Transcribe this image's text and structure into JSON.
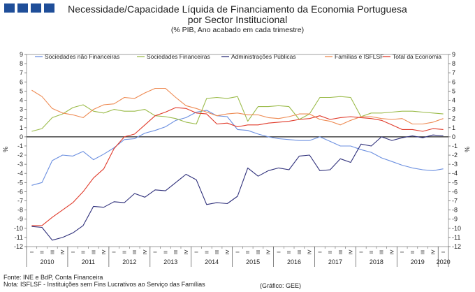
{
  "header": {
    "title_line1": "Necessidade/Capacidade Líquida de Financiamento da Economia Portuguesa",
    "title_line2": "por Sector Institucional",
    "subtitle": "(% PIB, Ano acabado em cada trimestre)"
  },
  "footer": {
    "source": "Fonte: INE e BdP, Conta Financeira",
    "note": "Nota: ISFLSF - Instituições sem Fins Lucrativos ao Serviço das Famílias",
    "credit": "(Gráfico: GEE)"
  },
  "colors": {
    "logo": "#1f4e99",
    "nfc": "#6b8fe0",
    "fin": "#9bbb4a",
    "gov": "#2e2f7a",
    "hh": "#ee8a52",
    "total": "#e03a2a"
  },
  "chart_data": {
    "type": "line",
    "ylabel_left": "%",
    "ylabel_right": "%",
    "ylim": [
      -12,
      9
    ],
    "yticks": [
      9,
      8,
      7,
      6,
      5,
      4,
      3,
      2,
      1,
      0,
      -1,
      -2,
      -3,
      -4,
      -5,
      -6,
      -7,
      -8,
      -9,
      -10,
      -11,
      -12
    ],
    "grid": false,
    "legend_position": "top",
    "quarter_labels": [
      "I",
      "II",
      "III",
      "IV"
    ],
    "years": [
      "2010",
      "2011",
      "2012",
      "2013",
      "2014",
      "2015",
      "2016",
      "2017",
      "2018",
      "2019",
      "2020"
    ],
    "x": [
      "2010 I",
      "2010 II",
      "2010 III",
      "2010 IV",
      "2011 I",
      "2011 II",
      "2011 III",
      "2011 IV",
      "2012 I",
      "2012 II",
      "2012 III",
      "2012 IV",
      "2013 I",
      "2013 II",
      "2013 III",
      "2013 IV",
      "2014 I",
      "2014 II",
      "2014 III",
      "2014 IV",
      "2015 I",
      "2015 II",
      "2015 III",
      "2015 IV",
      "2016 I",
      "2016 II",
      "2016 III",
      "2016 IV",
      "2017 I",
      "2017 II",
      "2017 III",
      "2017 IV",
      "2018 I",
      "2018 II",
      "2018 III",
      "2018 IV",
      "2019 I",
      "2019 II",
      "2019 III",
      "2019 IV",
      "2020 I"
    ],
    "series": [
      {
        "name": "Sociedades não Financeiras",
        "color": "#6b8fe0",
        "values": [
          -5.3,
          -5.0,
          -2.6,
          -2.0,
          -2.1,
          -1.6,
          -2.5,
          -1.9,
          -1.2,
          -0.3,
          -0.2,
          0.4,
          0.7,
          1.1,
          1.8,
          2.1,
          2.7,
          2.9,
          2.3,
          2.2,
          0.8,
          0.7,
          0.3,
          0.0,
          -0.2,
          -0.3,
          -0.4,
          -0.4,
          0.0,
          -0.5,
          -1.0,
          -1.0,
          -1.4,
          -1.7,
          -2.3,
          -2.7,
          -3.1,
          -3.4,
          -3.6,
          -3.7,
          -3.5
        ]
      },
      {
        "name": "Sociedades Financeiras",
        "color": "#9bbb4a",
        "values": [
          0.6,
          0.9,
          2.1,
          2.5,
          3.2,
          3.5,
          2.8,
          2.6,
          3.0,
          2.8,
          2.8,
          3.0,
          2.3,
          2.2,
          2.0,
          1.6,
          1.4,
          4.2,
          4.3,
          4.2,
          4.4,
          1.7,
          3.3,
          3.3,
          3.4,
          3.3,
          1.9,
          2.5,
          4.3,
          4.3,
          4.4,
          4.3,
          2.2,
          2.6,
          2.6,
          2.7,
          2.8,
          2.8,
          2.7,
          2.6,
          2.5
        ]
      },
      {
        "name": "Administrações Públicas",
        "color": "#2e2f7a",
        "values": [
          -9.8,
          -9.9,
          -11.3,
          -11.0,
          -10.5,
          -9.7,
          -7.6,
          -7.7,
          -7.1,
          -7.2,
          -6.2,
          -6.6,
          -5.8,
          -5.9,
          -5.0,
          -4.1,
          -4.7,
          -7.4,
          -7.2,
          -7.3,
          -6.5,
          -3.4,
          -4.3,
          -3.7,
          -3.4,
          -3.6,
          -2.1,
          -2.0,
          -3.7,
          -3.6,
          -2.4,
          -2.8,
          -0.8,
          -1.0,
          0.0,
          -0.4,
          -0.1,
          0.1,
          -0.1,
          0.2,
          0.1
        ]
      },
      {
        "name": "Famílias e ISFLSF",
        "color": "#ee8a52",
        "values": [
          5.1,
          4.4,
          3.1,
          2.6,
          2.4,
          2.1,
          3.0,
          3.5,
          3.6,
          4.3,
          4.2,
          4.8,
          5.3,
          5.3,
          4.3,
          3.4,
          3.1,
          2.7,
          2.3,
          2.5,
          2.6,
          2.4,
          2.4,
          2.1,
          2.0,
          2.2,
          2.5,
          2.5,
          1.9,
          1.7,
          1.3,
          1.8,
          2.2,
          2.2,
          2.0,
          1.9,
          2.0,
          1.4,
          1.4,
          1.6,
          2.0
        ]
      },
      {
        "name": "Total da Economia",
        "color": "#e03a2a",
        "values": [
          -9.7,
          -9.7,
          -8.8,
          -8.0,
          -7.2,
          -6.0,
          -4.5,
          -3.5,
          -1.3,
          0.0,
          0.3,
          1.3,
          2.3,
          2.7,
          3.2,
          3.1,
          2.6,
          2.5,
          1.4,
          1.5,
          1.1,
          1.3,
          1.3,
          1.5,
          1.6,
          1.7,
          1.9,
          2.0,
          2.3,
          1.9,
          2.1,
          2.2,
          2.1,
          2.0,
          1.8,
          1.3,
          0.8,
          0.8,
          0.6,
          0.9,
          0.8
        ]
      }
    ]
  }
}
